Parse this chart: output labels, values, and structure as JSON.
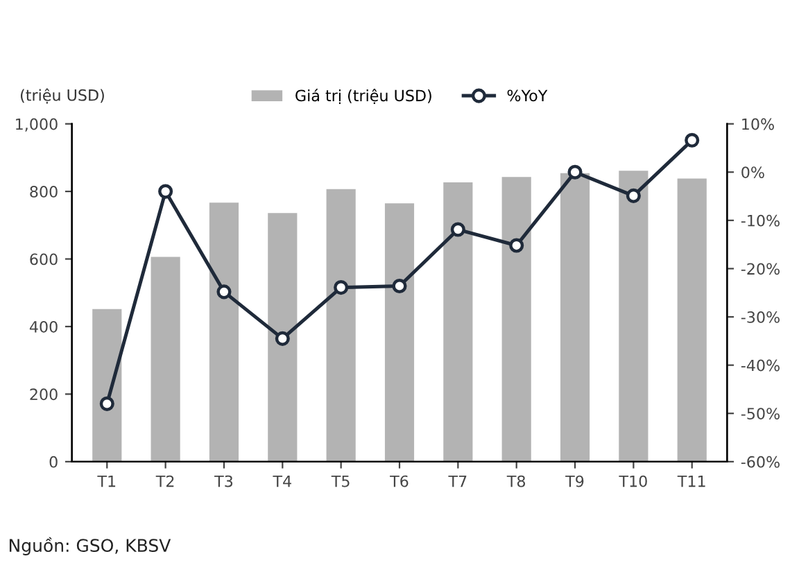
{
  "chart_data": {
    "type": "bar",
    "ylabel": "(triệu USD)",
    "categories": [
      "T1",
      "T2",
      "T3",
      "T4",
      "T5",
      "T6",
      "T7",
      "T8",
      "T9",
      "T10",
      "T11"
    ],
    "series": [
      {
        "name": "Giá trị (triệu USD)",
        "color": "#b3b3b3",
        "values": [
          452,
          606,
          767,
          736,
          807,
          765,
          827,
          843,
          854,
          861,
          838
        ]
      },
      {
        "name": "%YoY",
        "type": "line",
        "axis": "y2",
        "color": "#1f2a3a",
        "marker": "circle",
        "values": [
          -48,
          -4,
          -24.8,
          -34.5,
          -23.9,
          -23.6,
          -11.9,
          -15.2,
          0,
          -4.9,
          6.6
        ]
      }
    ],
    "ylim": [
      0,
      1000
    ],
    "yticks": [
      0,
      200,
      400,
      600,
      800,
      {
        "value": 1000,
        "label": "1,000"
      }
    ],
    "y2lim": [
      -60,
      10
    ],
    "y2ticks": [
      {
        "value": -60,
        "label": "-60%"
      },
      {
        "value": -50,
        "label": "-50%"
      },
      {
        "value": -40,
        "label": "-40%"
      },
      {
        "value": -30,
        "label": "-30%"
      },
      {
        "value": -20,
        "label": "-20%"
      },
      {
        "value": -10,
        "label": "-10%"
      },
      {
        "value": 0,
        "label": "0%"
      },
      {
        "value": 10,
        "label": "10%"
      }
    ],
    "grid": false,
    "legend": "top",
    "annotations": [
      "Nguồn: GSO, KBSV"
    ]
  }
}
